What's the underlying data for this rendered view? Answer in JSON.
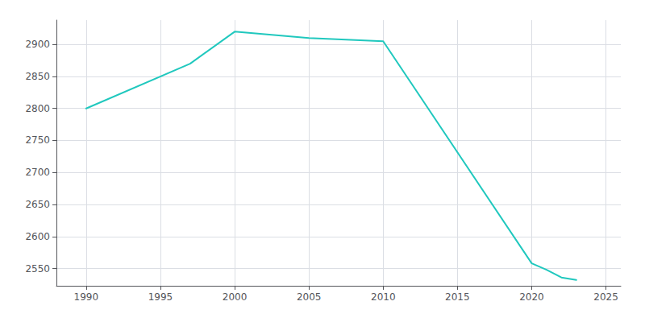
{
  "chart_data": {
    "type": "line",
    "x": [
      1990,
      1997,
      2000,
      2005,
      2010,
      2020,
      2021,
      2022,
      2023
    ],
    "values": [
      2800,
      2870,
      2920,
      2910,
      2905,
      2558,
      2548,
      2536,
      2532
    ],
    "color": "#20c8be",
    "xlim": [
      1988,
      2026
    ],
    "ylim": [
      2523,
      2938
    ],
    "xticks": [
      1990,
      1995,
      2000,
      2005,
      2010,
      2015,
      2020,
      2025
    ],
    "yticks": [
      2550,
      2600,
      2650,
      2700,
      2750,
      2800,
      2850,
      2900
    ],
    "grid": true
  }
}
